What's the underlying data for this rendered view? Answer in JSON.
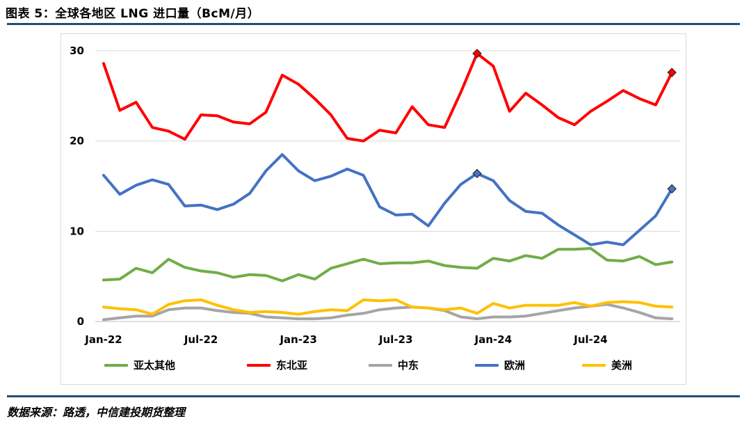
{
  "header": {
    "title": "图表 5：全球各地区 LNG 进口量（BcM/月）"
  },
  "footer": {
    "source": "数据来源：路透，中信建投期货整理"
  },
  "chart_data": {
    "type": "line",
    "ylim": [
      0,
      30
    ],
    "yticks": [
      "0",
      "10",
      "20",
      "30"
    ],
    "grid": true,
    "legend_position": "bottom",
    "xtick_labels": [
      {
        "index": 0,
        "label": "Jan-22"
      },
      {
        "index": 6,
        "label": "Jul-22"
      },
      {
        "index": 12,
        "label": "Jan-23"
      },
      {
        "index": 18,
        "label": "Jul-23"
      },
      {
        "index": 24,
        "label": "Jan-24"
      },
      {
        "index": 30,
        "label": "Jul-24"
      }
    ],
    "series": [
      {
        "name": "亚太其他",
        "color": "#70ad47",
        "values": [
          4.6,
          4.7,
          5.9,
          5.4,
          6.9,
          6.0,
          5.6,
          5.4,
          4.9,
          5.2,
          5.1,
          4.5,
          5.2,
          4.7,
          5.9,
          6.4,
          6.9,
          6.4,
          6.5,
          6.5,
          6.7,
          6.2,
          6.0,
          5.9,
          7.0,
          6.7,
          7.3,
          7.0,
          8.0,
          8.0,
          8.1,
          6.8,
          6.7,
          7.2,
          6.3,
          6.6
        ],
        "markers": []
      },
      {
        "name": "东北亚",
        "color": "#ff0000",
        "values": [
          28.6,
          23.4,
          24.3,
          21.5,
          21.1,
          20.2,
          22.9,
          22.8,
          22.1,
          21.9,
          23.2,
          27.3,
          26.3,
          24.7,
          22.9,
          20.3,
          20.0,
          21.2,
          20.9,
          23.8,
          21.8,
          21.5,
          25.4,
          29.7,
          28.3,
          23.3,
          25.3,
          24.0,
          22.6,
          21.8,
          23.3,
          24.4,
          25.6,
          24.7,
          24.0,
          27.6
        ],
        "markers": [
          23,
          35
        ]
      },
      {
        "name": "中东",
        "color": "#a5a5a5",
        "values": [
          0.2,
          0.4,
          0.6,
          0.6,
          1.3,
          1.5,
          1.5,
          1.2,
          1.0,
          0.9,
          0.5,
          0.4,
          0.3,
          0.3,
          0.4,
          0.7,
          0.9,
          1.3,
          1.5,
          1.6,
          1.5,
          1.2,
          0.5,
          0.3,
          0.5,
          0.5,
          0.6,
          0.9,
          1.2,
          1.5,
          1.7,
          1.9,
          1.5,
          1.0,
          0.4,
          0.3
        ],
        "markers": []
      },
      {
        "name": "欧洲",
        "color": "#4472c4",
        "values": [
          16.2,
          14.1,
          15.1,
          15.7,
          15.2,
          12.8,
          12.9,
          12.4,
          13.0,
          14.2,
          16.7,
          18.5,
          16.7,
          15.6,
          16.1,
          16.9,
          16.2,
          12.7,
          11.8,
          11.9,
          10.6,
          13.1,
          15.2,
          16.4,
          15.6,
          13.4,
          12.2,
          12.0,
          10.7,
          9.6,
          8.5,
          8.8,
          8.5,
          10.1,
          11.7,
          14.7
        ],
        "markers": [
          23,
          35
        ]
      },
      {
        "name": "美洲",
        "color": "#ffc000",
        "values": [
          1.6,
          1.4,
          1.3,
          0.8,
          1.9,
          2.3,
          2.4,
          1.8,
          1.3,
          1.0,
          1.1,
          1.0,
          0.8,
          1.1,
          1.3,
          1.2,
          2.4,
          2.3,
          2.4,
          1.6,
          1.5,
          1.3,
          1.5,
          0.9,
          2.0,
          1.5,
          1.8,
          1.8,
          1.8,
          2.1,
          1.7,
          2.1,
          2.2,
          2.1,
          1.7,
          1.6
        ],
        "markers": []
      }
    ]
  }
}
